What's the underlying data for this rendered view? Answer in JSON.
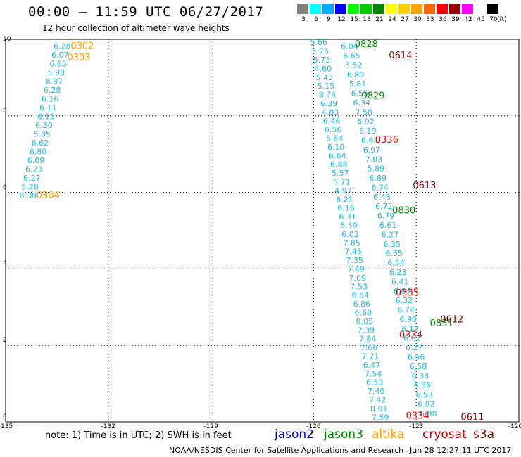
{
  "header": {
    "title": "00:00 – 11:59 UTC 06/27/2017",
    "subtitle": "12 hour collection of altimeter wave heights"
  },
  "legend": {
    "labels": [
      "3",
      "6",
      "9",
      "12",
      "15",
      "18",
      "21",
      "24",
      "27",
      "30",
      "33",
      "36",
      "39",
      "42",
      "45",
      "70"
    ],
    "unit": "(ft)",
    "colors": [
      "#808080",
      "#00ffff",
      "#00aaff",
      "#0000ff",
      "#00ff00",
      "#00cc00",
      "#008800",
      "#ffff00",
      "#ffd000",
      "#ffa500",
      "#ff6600",
      "#ff0000",
      "#990000",
      "#ff00ff",
      "#ffffff",
      "#000000"
    ]
  },
  "axes": {
    "y_ticks": [
      "10",
      "8",
      "6",
      "4",
      "2",
      "0"
    ],
    "x_ticks": [
      "-135",
      "-132",
      "-129",
      "-126",
      "-123",
      "-120"
    ]
  },
  "note_text": "note: 1) Time is in UTC; 2) SWH is in feet",
  "satellites": [
    {
      "name": "jason2",
      "color": "#0000cc"
    },
    {
      "name": "jason3",
      "color": "#008800"
    },
    {
      "name": "altika",
      "color": "#ff9900"
    },
    {
      "name": "cryosat",
      "color": "#cc0000"
    },
    {
      "name": "s3a",
      "color": "#7a0000"
    }
  ],
  "footer": {
    "credit": "NOAA/NESDIS Center for Satellite Applications and Research",
    "timestamp": "Jun 28 12:27:11 UTC 2017"
  },
  "chart_data": {
    "type": "scatter",
    "x_range": [
      -135,
      -120
    ],
    "y_range": [
      0,
      10
    ],
    "wave_color": "#1ab8e0",
    "colors": {
      "altika": "#ff9900",
      "jason3": "#008800",
      "cryosat": "#ee0000",
      "s3a": "#7a0000"
    },
    "time_labels": [
      {
        "text": "0302",
        "sat": "altika",
        "lon": -133.1,
        "lat": 9.75
      },
      {
        "text": "0303",
        "sat": "altika",
        "lon": -133.2,
        "lat": 9.45
      },
      {
        "text": "0304",
        "sat": "altika",
        "lon": -134.1,
        "lat": 5.85
      },
      {
        "text": "0828",
        "sat": "jason3",
        "lon": -124.8,
        "lat": 9.8
      },
      {
        "text": "0829",
        "sat": "jason3",
        "lon": -124.6,
        "lat": 8.45
      },
      {
        "text": "0830",
        "sat": "jason3",
        "lon": -123.7,
        "lat": 5.45
      },
      {
        "text": "0831",
        "sat": "jason3",
        "lon": -122.6,
        "lat": 2.5
      },
      {
        "text": "0614",
        "sat": "s3a",
        "lon": -123.8,
        "lat": 9.5
      },
      {
        "text": "0613",
        "sat": "s3a",
        "lon": -123.1,
        "lat": 6.1
      },
      {
        "text": "0612",
        "sat": "s3a",
        "lon": -122.3,
        "lat": 2.6
      },
      {
        "text": "0611",
        "sat": "s3a",
        "lon": -121.7,
        "lat": 0.05
      },
      {
        "text": "0336",
        "sat": "cryosat",
        "lon": -124.2,
        "lat": 7.3
      },
      {
        "text": "0335",
        "sat": "cryosat",
        "lon": -123.6,
        "lat": 3.3
      },
      {
        "text": "0334",
        "sat": "cryosat",
        "lon": -123.5,
        "lat": 2.2
      },
      {
        "text": "0334",
        "sat": "cryosat",
        "lon": -123.3,
        "lat": 0.08
      }
    ],
    "track_altika": {
      "lat_start": 9.75,
      "lat_end": 5.85,
      "lon_start": -133.6,
      "lon_end": -134.6,
      "values": [
        "6.28",
        "6.07",
        "6.65",
        "5.90",
        "6.37",
        "6.28",
        "6.16",
        "6.11",
        "6.15",
        "6.30",
        "5.85",
        "6.62",
        "6.80",
        "6.09",
        "6.23",
        "6.27",
        "5.29",
        "6.38"
      ]
    },
    "track_a": {
      "lat_start": 9.85,
      "lat_end": 0.05,
      "lon_start": -126.1,
      "lon_end": -124.3,
      "values": [
        "5.66",
        "5.76",
        "5.73",
        "4.60",
        "5.43",
        "5.15",
        "8.74",
        "6.39",
        "4.83",
        "6.46",
        "6.56",
        "5.84",
        "6.10",
        "6.64",
        "6.88",
        "5.57",
        "5.71",
        "4.97",
        "6.21",
        "6.16",
        "6.31",
        "5.59",
        "6.02",
        "7.85",
        "7.45",
        "7.35",
        "7.49",
        "7.09",
        "7.53",
        "6.54",
        "6.86",
        "6.60",
        "8.05",
        "7.39",
        "7.84",
        "7.66",
        "7.21",
        "6.47",
        "7.54",
        "6.53",
        "7.40",
        "7.42",
        "8.01",
        "7.59"
      ]
    },
    "track_b": {
      "lat_start": 9.75,
      "lat_end": 0.15,
      "lon_start": -125.2,
      "lon_end": -122.9,
      "values": [
        "6.04",
        "6.65",
        "5.52",
        "6.89",
        "5.81",
        "6.55",
        "6.34",
        "7.58",
        "6.92",
        "6.19",
        "6.64",
        "6.97",
        "7.03",
        "5.89",
        "6.89",
        "6.74",
        "6.48",
        "6.72",
        "6.79",
        "6.61",
        "6.27",
        "6.35",
        "6.55",
        "6.54",
        "6.23",
        "6.41",
        "6.64",
        "6.32",
        "6.74",
        "6.90",
        "6.12",
        "6.62",
        "6.27",
        "6.56",
        "6.58",
        "6.38",
        "6.36",
        "6.53",
        "6.82",
        "6.88"
      ]
    }
  }
}
